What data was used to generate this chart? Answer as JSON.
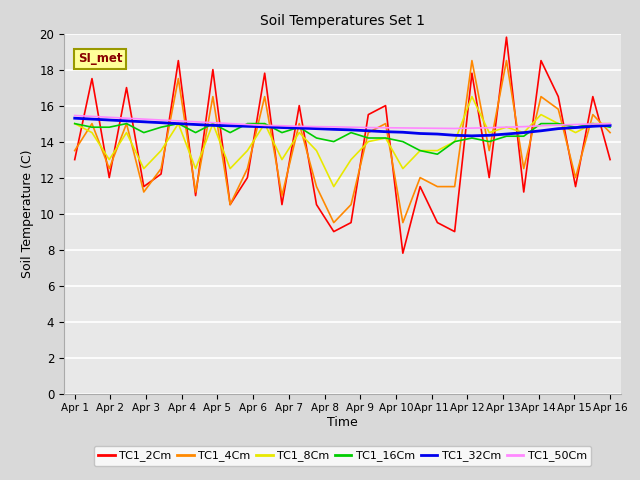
{
  "title": "Soil Temperatures Set 1",
  "xlabel": "Time",
  "ylabel": "Soil Temperature (C)",
  "annotation": "SI_met",
  "fig_bg_color": "#d9d9d9",
  "plot_bg_color": "#e8e8e8",
  "ylim": [
    0,
    20
  ],
  "yticks": [
    0,
    2,
    4,
    6,
    8,
    10,
    12,
    14,
    16,
    18,
    20
  ],
  "x_labels": [
    "Apr 1",
    "Apr 2",
    "Apr 3",
    "Apr 4",
    "Apr 5",
    "Apr 6",
    "Apr 7",
    "Apr 8",
    "Apr 9",
    "Apr 10",
    "Apr 11",
    "Apr 12",
    "Apr 13",
    "Apr 14",
    "Apr 15",
    "Apr 16"
  ],
  "n_points": 32,
  "series": {
    "TC1_2Cm": {
      "color": "#ff0000",
      "lw": 1.2,
      "data": [
        13.0,
        17.5,
        12.0,
        17.0,
        11.5,
        12.2,
        18.5,
        11.0,
        18.0,
        10.5,
        12.0,
        17.8,
        10.5,
        16.0,
        10.5,
        9.0,
        9.5,
        15.5,
        16.0,
        7.8,
        11.5,
        9.5,
        9.0,
        17.8,
        12.0,
        19.8,
        11.2,
        18.5,
        16.5,
        11.5,
        16.5,
        13.0
      ]
    },
    "TC1_4Cm": {
      "color": "#ff8800",
      "lw": 1.2,
      "data": [
        13.5,
        15.0,
        12.5,
        15.0,
        11.2,
        12.5,
        17.5,
        11.2,
        16.5,
        10.5,
        12.5,
        16.5,
        11.0,
        15.0,
        11.5,
        9.5,
        10.5,
        14.5,
        15.0,
        9.5,
        12.0,
        11.5,
        11.5,
        18.5,
        13.5,
        18.5,
        12.5,
        16.5,
        15.8,
        12.0,
        15.5,
        14.5
      ]
    },
    "TC1_8Cm": {
      "color": "#e8e800",
      "lw": 1.2,
      "data": [
        15.0,
        14.5,
        13.0,
        14.5,
        12.5,
        13.5,
        15.0,
        12.5,
        15.0,
        12.5,
        13.5,
        15.0,
        13.0,
        14.5,
        13.5,
        11.5,
        13.0,
        14.0,
        14.2,
        12.5,
        13.5,
        13.5,
        14.0,
        16.5,
        14.5,
        14.8,
        14.5,
        15.5,
        15.0,
        14.5,
        15.0,
        15.0
      ]
    },
    "TC1_16Cm": {
      "color": "#00cc00",
      "lw": 1.2,
      "data": [
        15.0,
        14.8,
        14.8,
        15.0,
        14.5,
        14.8,
        15.0,
        14.5,
        15.0,
        14.5,
        15.0,
        15.0,
        14.5,
        14.8,
        14.2,
        14.0,
        14.5,
        14.2,
        14.2,
        14.0,
        13.5,
        13.3,
        14.0,
        14.2,
        14.0,
        14.3,
        14.3,
        15.0,
        15.0,
        14.8,
        15.0,
        14.8
      ]
    },
    "TC1_32Cm": {
      "color": "#0000ee",
      "lw": 2.0,
      "data": [
        15.3,
        15.25,
        15.2,
        15.15,
        15.1,
        15.05,
        15.0,
        14.95,
        14.9,
        14.88,
        14.85,
        14.82,
        14.78,
        14.75,
        14.72,
        14.68,
        14.65,
        14.6,
        14.55,
        14.52,
        14.45,
        14.42,
        14.35,
        14.32,
        14.35,
        14.42,
        14.5,
        14.6,
        14.72,
        14.78,
        14.85,
        14.9
      ]
    },
    "TC1_50Cm": {
      "color": "#ff88ff",
      "lw": 1.2,
      "data": [
        15.45,
        15.4,
        15.35,
        15.3,
        15.25,
        15.2,
        15.15,
        15.1,
        15.05,
        15.0,
        14.95,
        14.9,
        14.88,
        14.85,
        14.83,
        14.82,
        14.8,
        14.78,
        14.77,
        14.76,
        14.75,
        14.74,
        14.73,
        14.75,
        14.77,
        14.8,
        14.83,
        14.88,
        14.92,
        14.95,
        14.98,
        15.0
      ]
    }
  }
}
